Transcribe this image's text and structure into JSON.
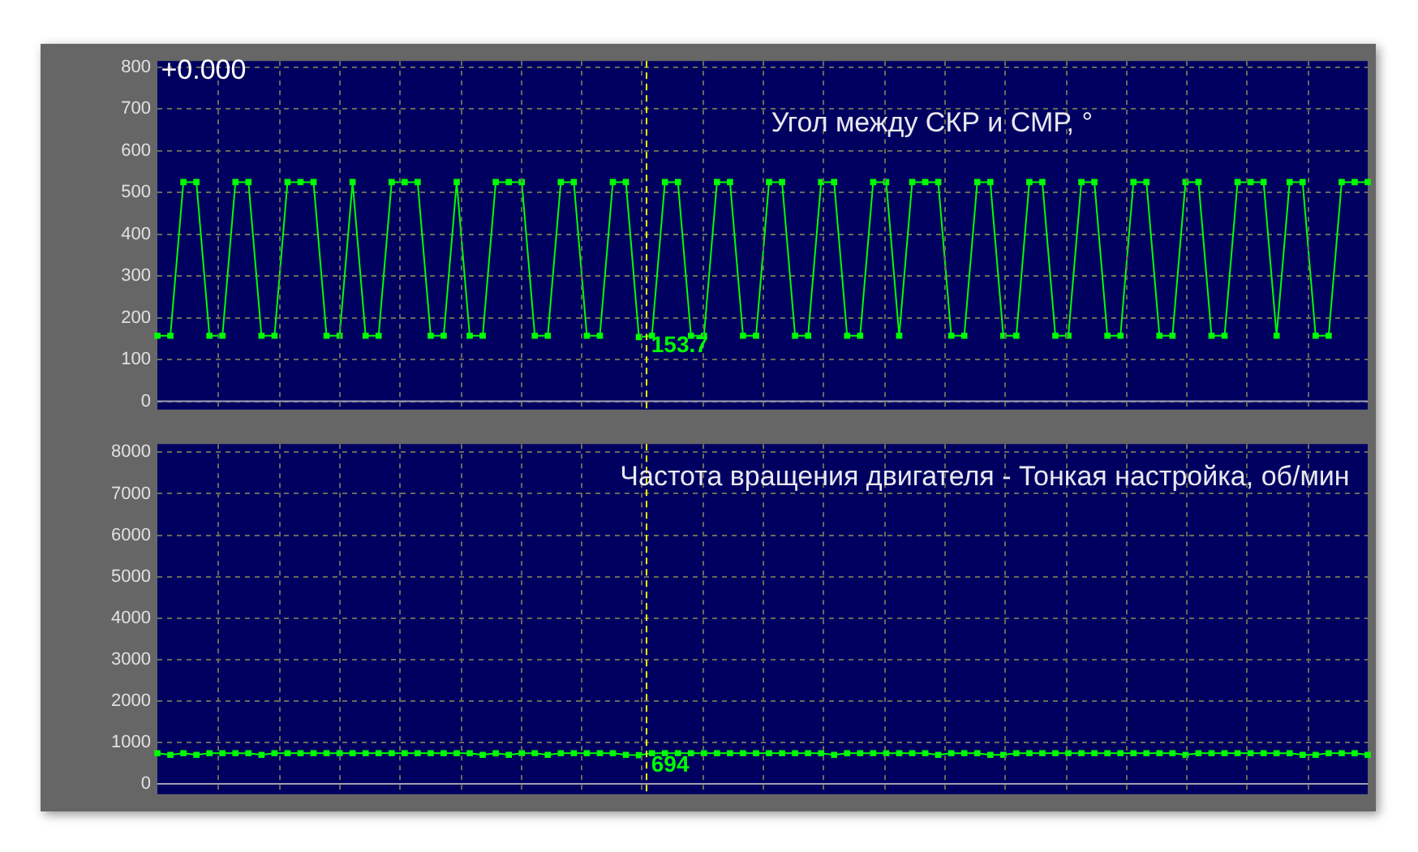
{
  "chart_data": [
    {
      "type": "line",
      "title": "Угол между СКР и СМР, °",
      "categories": [
        null,
        null,
        null,
        null,
        null,
        null,
        null,
        null,
        null,
        null,
        null,
        null,
        null,
        null,
        null,
        null,
        null,
        null,
        null,
        null,
        null,
        null,
        null,
        null,
        null,
        null,
        null,
        null,
        null,
        null,
        null,
        null,
        null,
        null,
        null,
        null,
        null,
        null,
        null,
        null,
        null,
        null,
        null,
        null,
        null,
        null,
        null,
        null,
        null,
        null,
        null,
        null,
        null,
        null,
        null,
        null,
        null,
        null,
        null,
        null,
        null,
        null,
        null,
        null,
        null,
        null,
        null,
        null,
        null,
        null,
        null,
        null,
        null,
        null,
        null,
        null,
        null,
        null,
        null,
        null,
        null,
        null,
        null,
        null,
        null,
        null,
        null,
        null,
        null,
        null,
        null,
        null,
        null,
        null
      ],
      "series": [
        {
          "color": "#00ff00",
          "values": [
            157,
            157,
            525,
            525,
            157,
            157,
            525,
            525,
            157,
            157,
            525,
            525,
            525,
            157,
            157,
            525,
            157,
            157,
            525,
            525,
            525,
            157,
            157,
            525,
            157,
            157,
            525,
            525,
            525,
            157,
            157,
            525,
            525,
            157,
            157,
            525,
            525,
            153.7,
            157,
            525,
            525,
            157,
            157,
            525,
            525,
            157,
            157,
            525,
            525,
            157,
            157,
            525,
            525,
            157,
            157,
            525,
            525,
            157,
            525,
            525,
            525,
            157,
            157,
            525,
            525,
            157,
            157,
            525,
            525,
            157,
            157,
            525,
            525,
            157,
            157,
            525,
            525,
            157,
            157,
            525,
            525,
            157,
            157,
            525,
            525,
            525,
            157,
            525,
            525,
            157,
            157,
            525,
            525,
            525
          ]
        }
      ],
      "ylim": [
        -20,
        815
      ],
      "yticks": [
        0,
        100,
        200,
        300,
        400,
        500,
        600,
        700,
        800
      ],
      "grid": true,
      "tick_labels": "y",
      "marker": "square",
      "line_style": "solid",
      "legend": false,
      "annotations": [
        "+0.000",
        "153.7"
      ]
    },
    {
      "type": "line",
      "title": "Частота вращения двигателя - Тонкая настройка, об/мин",
      "categories": [
        null,
        null,
        null,
        null,
        null,
        null,
        null,
        null,
        null,
        null,
        null,
        null,
        null,
        null,
        null,
        null,
        null,
        null,
        null,
        null,
        null,
        null,
        null,
        null,
        null,
        null,
        null,
        null,
        null,
        null,
        null,
        null,
        null,
        null,
        null,
        null,
        null,
        null,
        null,
        null,
        null,
        null,
        null,
        null,
        null,
        null,
        null,
        null,
        null,
        null,
        null,
        null,
        null,
        null,
        null,
        null,
        null,
        null,
        null,
        null,
        null,
        null,
        null,
        null,
        null,
        null,
        null,
        null,
        null,
        null,
        null,
        null,
        null,
        null,
        null,
        null,
        null,
        null,
        null,
        null,
        null,
        null,
        null,
        null,
        null,
        null,
        null,
        null,
        null,
        null,
        null,
        null,
        null,
        null
      ],
      "series": [
        {
          "color": "#00ff00",
          "values": [
            740,
            700,
            740,
            700,
            740,
            740,
            740,
            740,
            700,
            740,
            740,
            740,
            740,
            740,
            740,
            740,
            740,
            740,
            740,
            740,
            740,
            740,
            740,
            740,
            740,
            700,
            740,
            700,
            740,
            740,
            700,
            740,
            740,
            740,
            740,
            740,
            700,
            694,
            740,
            740,
            740,
            740,
            740,
            740,
            740,
            740,
            740,
            740,
            740,
            740,
            740,
            740,
            700,
            740,
            740,
            740,
            740,
            740,
            740,
            740,
            700,
            740,
            740,
            740,
            700,
            700,
            740,
            740,
            740,
            740,
            740,
            740,
            740,
            740,
            740,
            740,
            740,
            740,
            740,
            700,
            740,
            740,
            740,
            740,
            740,
            740,
            740,
            740,
            700,
            700,
            740,
            740,
            740,
            700
          ]
        }
      ],
      "ylim": [
        -250,
        8200
      ],
      "yticks": [
        0,
        1000,
        2000,
        3000,
        4000,
        5000,
        6000,
        7000,
        8000
      ],
      "grid": true,
      "tick_labels": "y",
      "marker": "square",
      "line_style": "solid",
      "legend": false,
      "annotations": [
        "694"
      ]
    }
  ]
}
